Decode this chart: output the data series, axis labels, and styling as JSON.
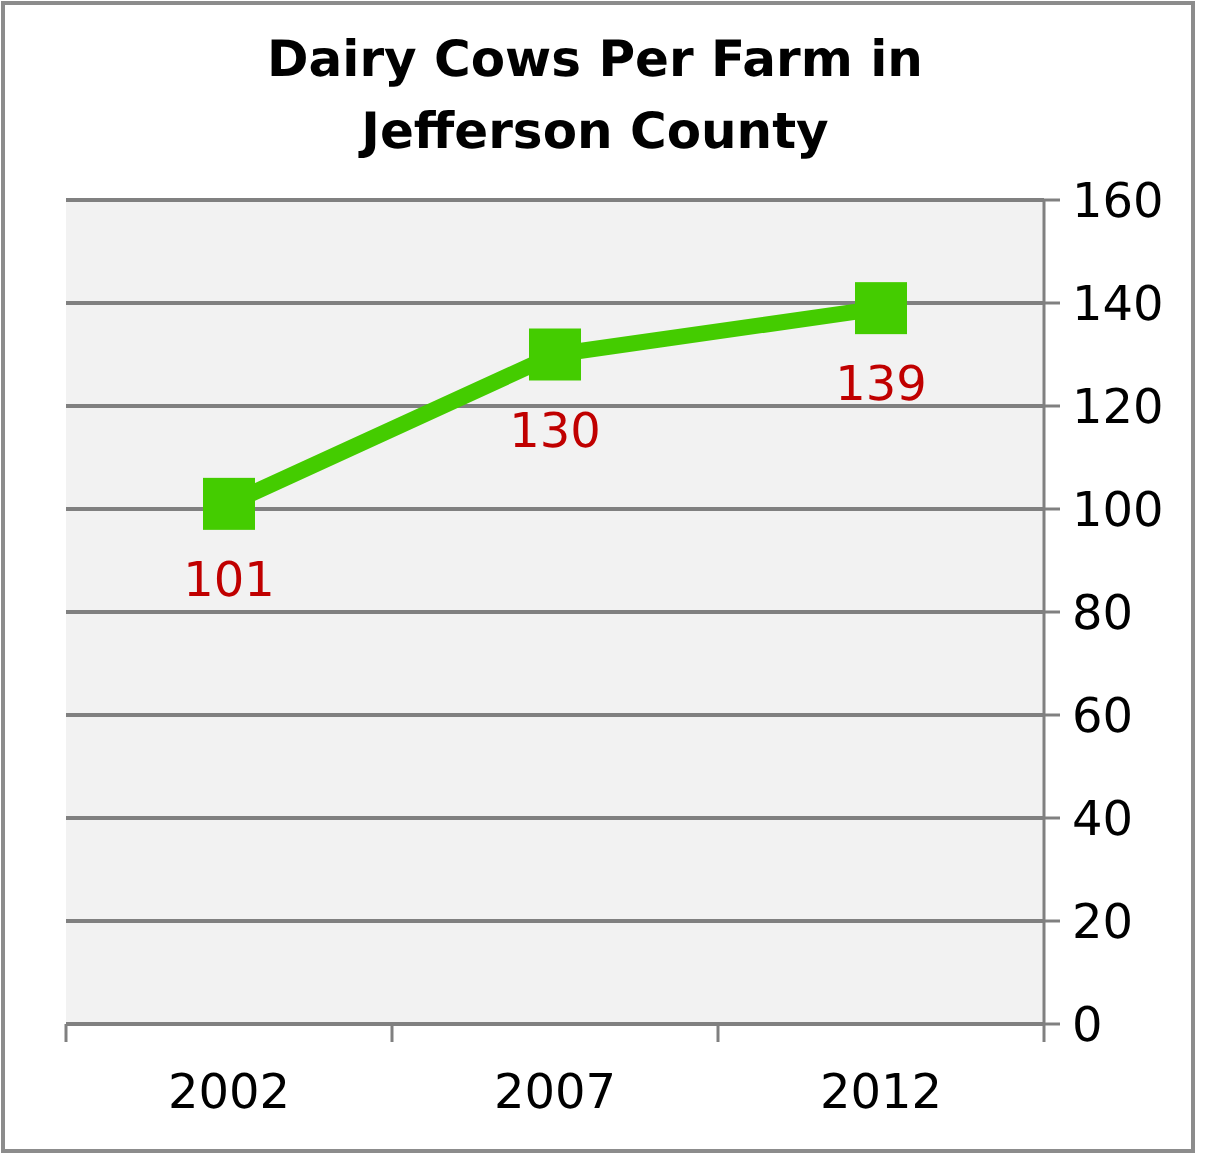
{
  "chart_data": {
    "type": "line",
    "title": "Dairy Cows Per Farm  in Jefferson County",
    "categories": [
      "2002",
      "2007",
      "2012"
    ],
    "series": [
      {
        "color": "#44cc00",
        "values": [
          101,
          130,
          139
        ]
      }
    ],
    "ylim": [
      0,
      160
    ],
    "yticks": [
      0,
      20,
      40,
      60,
      80,
      100,
      120,
      140,
      160
    ],
    "grid": "y",
    "marker": "square",
    "line_style": "solid",
    "data_labels": true
  }
}
